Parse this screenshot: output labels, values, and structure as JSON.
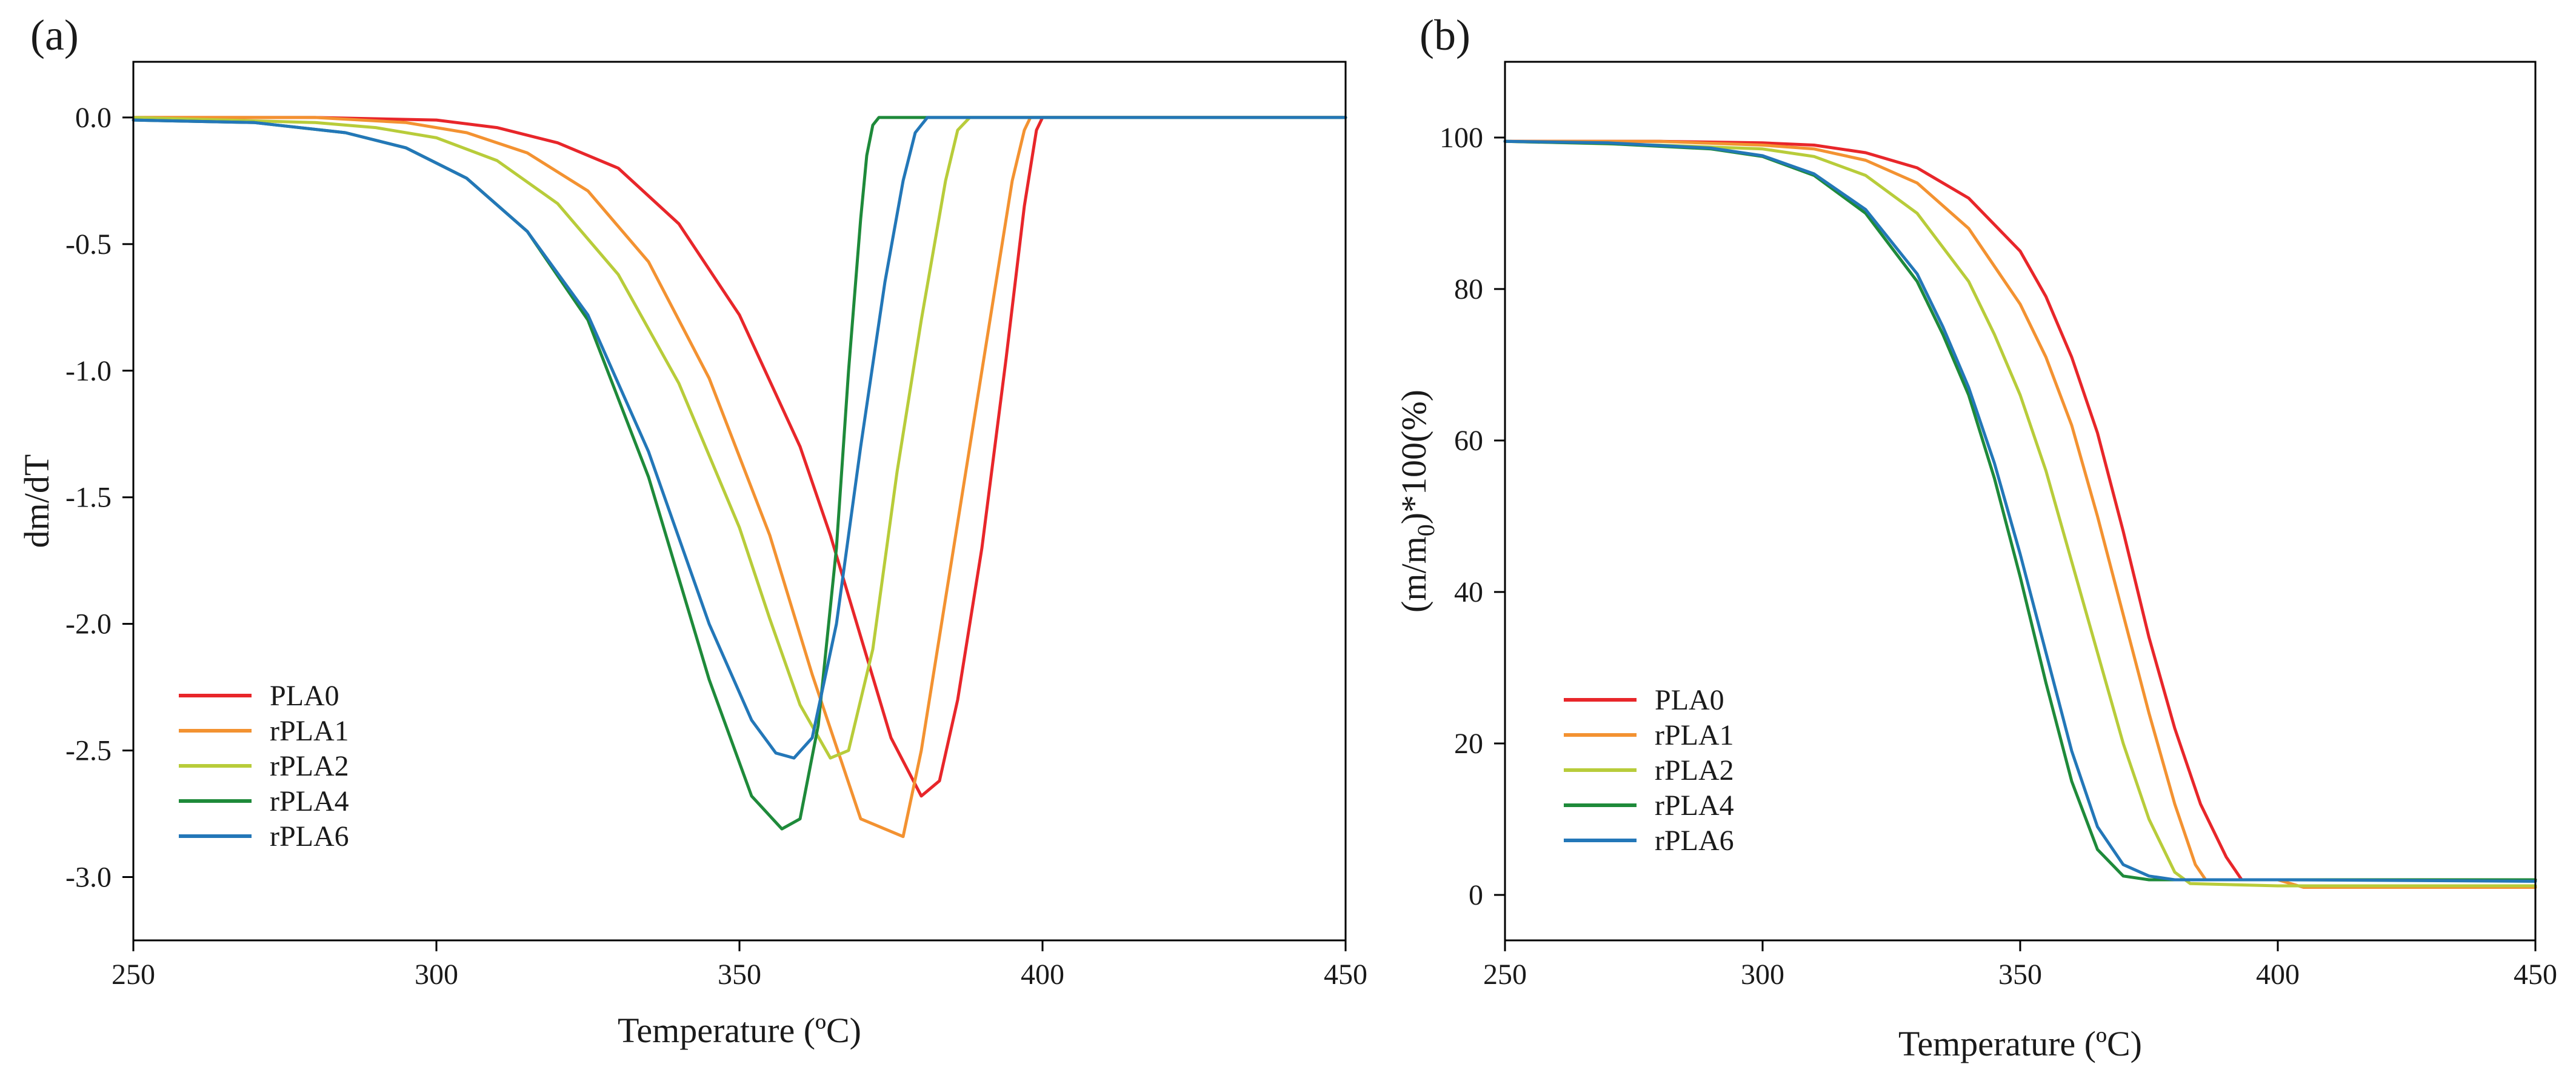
{
  "chart_data": [
    {
      "type": "line",
      "panel_label": "(a)",
      "title": "",
      "xlabel": "Temperature (ºC)",
      "ylabel": "dm/dT",
      "xlim": [
        250,
        450
      ],
      "ylim": [
        -3.25,
        0.22
      ],
      "xticks": [
        250,
        300,
        350,
        400,
        450
      ],
      "xtick_labels": [
        "250",
        "300",
        "350",
        "400",
        "450"
      ],
      "yticks": [
        0.0,
        -0.5,
        -1.0,
        -1.5,
        -2.0,
        -2.5,
        -3.0
      ],
      "ytick_labels": [
        "0.0",
        "-0.5",
        "-1.0",
        "-1.5",
        "-2.0",
        "-2.5",
        "-3.0"
      ],
      "grid": false,
      "legend_position": "lower-left",
      "series": [
        {
          "name": "PLA0",
          "color": "#e8262a",
          "x": [
            250,
            280,
            300,
            310,
            320,
            330,
            340,
            350,
            360,
            365,
            370,
            375,
            380,
            383,
            386,
            390,
            394,
            397,
            399,
            400,
            410,
            450
          ],
          "y": [
            0,
            0,
            -0.01,
            -0.04,
            -0.1,
            -0.2,
            -0.42,
            -0.78,
            -1.3,
            -1.65,
            -2.05,
            -2.45,
            -2.68,
            -2.62,
            -2.3,
            -1.7,
            -0.95,
            -0.35,
            -0.05,
            0,
            0,
            0
          ]
        },
        {
          "name": "rPLA1",
          "color": "#f39231",
          "x": [
            250,
            280,
            295,
            305,
            315,
            325,
            335,
            345,
            355,
            362,
            370,
            377,
            380,
            384,
            388,
            392,
            395,
            397,
            398,
            400,
            410,
            450
          ],
          "y": [
            0,
            0,
            -0.02,
            -0.06,
            -0.14,
            -0.29,
            -0.57,
            -1.03,
            -1.65,
            -2.2,
            -2.77,
            -2.84,
            -2.5,
            -1.9,
            -1.3,
            -0.7,
            -0.25,
            -0.05,
            0,
            0,
            0,
            0
          ]
        },
        {
          "name": "rPLA2",
          "color": "#b8cc3a",
          "x": [
            250,
            280,
            290,
            300,
            310,
            320,
            330,
            340,
            350,
            355,
            360,
            365,
            368,
            372,
            376,
            380,
            384,
            386,
            388,
            400,
            450
          ],
          "y": [
            0,
            -0.02,
            -0.04,
            -0.08,
            -0.17,
            -0.34,
            -0.62,
            -1.05,
            -1.62,
            -1.98,
            -2.32,
            -2.53,
            -2.5,
            -2.1,
            -1.4,
            -0.8,
            -0.25,
            -0.05,
            0,
            0,
            0
          ]
        },
        {
          "name": "rPLA4",
          "color": "#1e8a3a",
          "x": [
            250,
            270,
            285,
            295,
            305,
            315,
            325,
            335,
            345,
            352,
            357,
            360,
            363,
            366,
            368,
            370,
            371,
            372,
            373,
            380,
            450
          ],
          "y": [
            -0.01,
            -0.02,
            -0.06,
            -0.12,
            -0.24,
            -0.45,
            -0.8,
            -1.42,
            -2.22,
            -2.68,
            -2.81,
            -2.77,
            -2.4,
            -1.7,
            -1.0,
            -0.4,
            -0.15,
            -0.03,
            0,
            0,
            0
          ]
        },
        {
          "name": "rPLA6",
          "color": "#2377b8",
          "x": [
            250,
            270,
            285,
            295,
            305,
            315,
            325,
            335,
            345,
            352,
            356,
            359,
            362,
            366,
            370,
            374,
            377,
            379,
            381,
            390,
            450
          ],
          "y": [
            -0.01,
            -0.02,
            -0.06,
            -0.12,
            -0.24,
            -0.45,
            -0.78,
            -1.32,
            -2.0,
            -2.38,
            -2.51,
            -2.53,
            -2.45,
            -2.0,
            -1.3,
            -0.65,
            -0.25,
            -0.06,
            0,
            0,
            0
          ]
        }
      ]
    },
    {
      "type": "line",
      "panel_label": "(b)",
      "title": "",
      "xlabel": "Temperature (ºC)",
      "ylabel": "(m/m0)*100(%)",
      "ylabel_parts": [
        "(m/m",
        "0",
        ")*100(%)"
      ],
      "xlim": [
        250,
        450
      ],
      "ylim": [
        -6,
        110
      ],
      "xticks": [
        250,
        300,
        350,
        400,
        450
      ],
      "xtick_labels": [
        "250",
        "300",
        "350",
        "400",
        "450"
      ],
      "yticks": [
        0,
        20,
        40,
        60,
        80,
        100
      ],
      "ytick_labels": [
        "0",
        "20",
        "40",
        "60",
        "80",
        "100"
      ],
      "grid": false,
      "legend_position": "lower-left",
      "series": [
        {
          "name": "PLA0",
          "color": "#e8262a",
          "x": [
            250,
            280,
            300,
            310,
            320,
            330,
            340,
            350,
            355,
            360,
            365,
            370,
            375,
            380,
            385,
            390,
            393,
            400,
            410,
            450
          ],
          "y": [
            99.5,
            99.5,
            99.3,
            99,
            98,
            96,
            92,
            85,
            79,
            71,
            61,
            48,
            34,
            22,
            12,
            5,
            2,
            2,
            2,
            2
          ]
        },
        {
          "name": "rPLA1",
          "color": "#f39231",
          "x": [
            250,
            280,
            300,
            310,
            320,
            330,
            340,
            350,
            355,
            360,
            365,
            370,
            375,
            380,
            384,
            386,
            400,
            405,
            450
          ],
          "y": [
            99.5,
            99.5,
            99,
            98.5,
            97,
            94,
            88,
            78,
            71,
            62,
            50,
            37,
            24,
            12,
            4,
            2,
            2,
            1,
            1
          ]
        },
        {
          "name": "rPLA2",
          "color": "#b8cc3a",
          "x": [
            250,
            280,
            300,
            310,
            320,
            330,
            340,
            345,
            350,
            355,
            360,
            365,
            370,
            375,
            380,
            383,
            400,
            450
          ],
          "y": [
            99.5,
            99,
            98.5,
            97.5,
            95,
            90,
            81,
            74,
            66,
            56,
            44,
            32,
            20,
            10,
            3,
            1.5,
            1.2,
            1.2
          ]
        },
        {
          "name": "rPLA4",
          "color": "#1e8a3a",
          "x": [
            250,
            270,
            290,
            300,
            310,
            320,
            330,
            335,
            340,
            345,
            350,
            355,
            360,
            365,
            370,
            375,
            380,
            400,
            450
          ],
          "y": [
            99.5,
            99.2,
            98.5,
            97.5,
            95,
            90,
            81,
            74,
            66,
            55,
            42,
            28,
            15,
            6,
            2.5,
            2,
            2,
            2,
            2
          ]
        },
        {
          "name": "rPLA6",
          "color": "#2377b8",
          "x": [
            250,
            270,
            290,
            300,
            310,
            320,
            330,
            335,
            340,
            345,
            350,
            355,
            360,
            365,
            370,
            375,
            380,
            400,
            450
          ],
          "y": [
            99.5,
            99.3,
            98.6,
            97.6,
            95.2,
            90.5,
            82,
            75,
            67,
            57,
            45,
            32,
            19,
            9,
            4,
            2.5,
            2,
            2,
            1.8
          ]
        }
      ]
    }
  ]
}
